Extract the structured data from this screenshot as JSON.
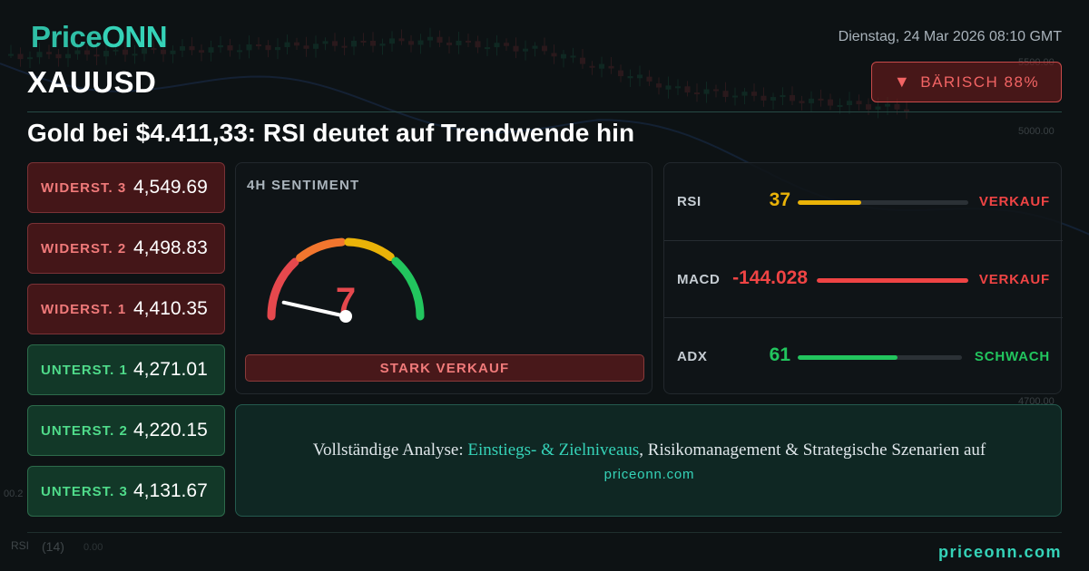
{
  "brand": {
    "logo_part1": "Price",
    "logo_part2": "ONN",
    "footer_url": "priceonn.com"
  },
  "header": {
    "datetime": "Dienstag, 24 Mar 2026 08:10 GMT",
    "symbol": "XAUUSD",
    "sentiment_badge": {
      "icon": "triangle-down-icon",
      "label": "BÄRISCH 88%"
    },
    "headline": "Gold bei $4.411,33: RSI deutet auf Trendwende hin"
  },
  "levels": [
    {
      "type": "resistance",
      "label": "WIDERST. 3",
      "value": "4,549.69"
    },
    {
      "type": "resistance",
      "label": "WIDERST. 2",
      "value": "4,498.83"
    },
    {
      "type": "resistance",
      "label": "WIDERST. 1",
      "value": "4,410.35"
    },
    {
      "type": "support",
      "label": "UNTERST. 1",
      "value": "4,271.01"
    },
    {
      "type": "support",
      "label": "UNTERST. 2",
      "value": "4,220.15"
    },
    {
      "type": "support",
      "label": "UNTERST. 3",
      "value": "4,131.67"
    }
  ],
  "gauge": {
    "title": "4H SENTIMENT",
    "value": "7",
    "scale_min": 0,
    "scale_max": 100,
    "label": "STARK VERKAUF",
    "colors": {
      "low": "#e5484d",
      "mid_low": "#f2762e",
      "mid": "#eab308",
      "high": "#22c55e",
      "value": "#e5484d"
    }
  },
  "indicators": [
    {
      "name": "RSI",
      "value": "37",
      "fill": 0.37,
      "signal": "VERKAUF",
      "value_color": "#eab308",
      "bar_color": "#eab308",
      "signal_color": "#ef4444"
    },
    {
      "name": "MACD",
      "value": "-144.028",
      "fill": 1.0,
      "signal": "VERKAUF",
      "value_color": "#ef4444",
      "bar_color": "#ef4444",
      "signal_color": "#ef4444"
    },
    {
      "name": "ADX",
      "value": "61",
      "fill": 0.61,
      "signal": "SCHWACH",
      "value_color": "#22c55e",
      "bar_color": "#22c55e",
      "signal_color": "#22c55e"
    }
  ],
  "cta": {
    "text_before": "Vollständige Analyse: ",
    "highlight": "Einstiegs- & Zielniveaus",
    "text_after": ", Risikomanagement & Strategische Szenarien auf",
    "link": "priceonn.com"
  },
  "background_chart": {
    "price_labels": [
      "5500.00",
      "5000.00",
      "4700.00"
    ],
    "lower_left_label": "00.2",
    "indicator_label": "RSI",
    "indicator_params": "(14)",
    "indicator_value": "0.00"
  }
}
